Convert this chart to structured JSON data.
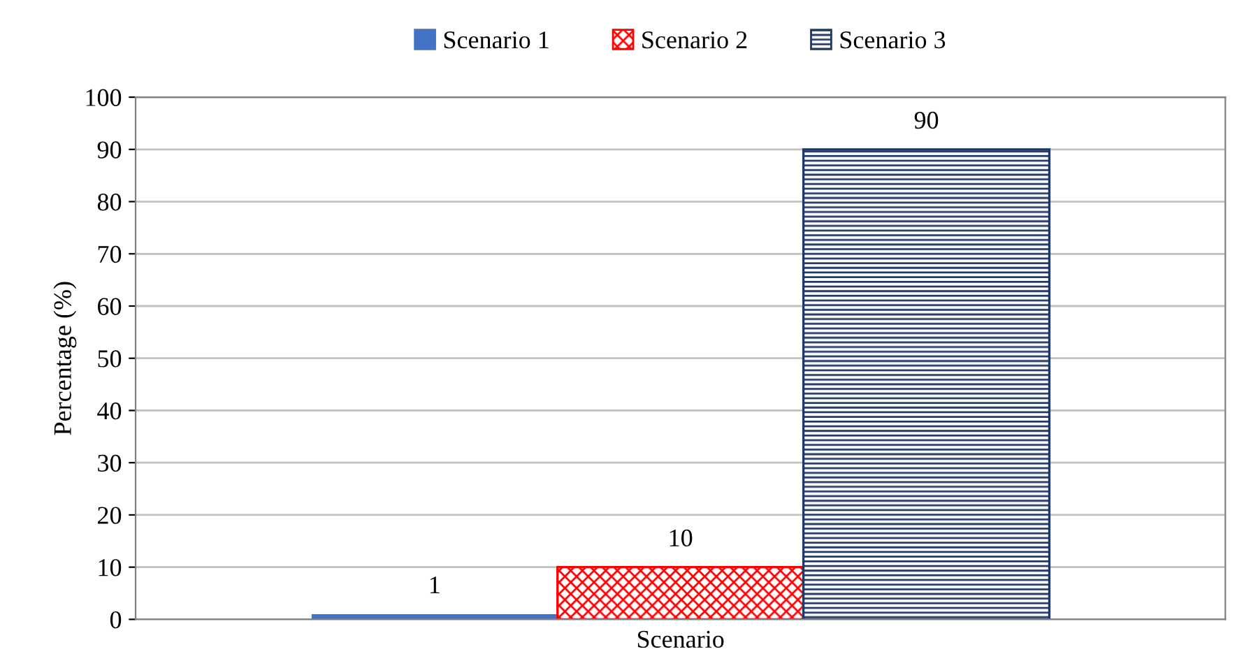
{
  "chart_data": {
    "type": "bar",
    "xlabel": "Scenario",
    "ylabel": "Percentage (%)",
    "categories": [
      null
    ],
    "series": [
      {
        "name": "Scenario 1",
        "color": "#4472c4",
        "values": [
          1
        ]
      },
      {
        "name": "Scenario 2",
        "color": "#ff0000",
        "values": [
          10
        ]
      },
      {
        "name": "Scenario 3",
        "color": "#203864",
        "values": [
          90
        ]
      }
    ],
    "ylim": [
      0,
      100
    ],
    "yticks": [
      0,
      10,
      20,
      30,
      40,
      50,
      60,
      70,
      80,
      90,
      100
    ],
    "grid": "y",
    "legend": "top",
    "data_labels": true
  }
}
